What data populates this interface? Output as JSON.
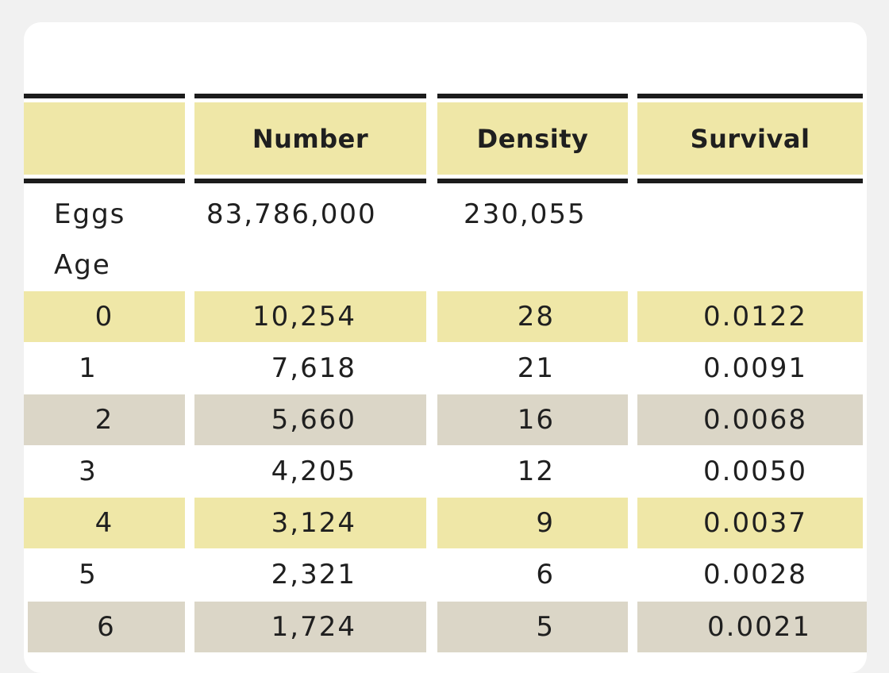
{
  "table": {
    "headers": [
      "",
      "Number",
      "Density",
      "Survival"
    ],
    "eggs_row": {
      "label": "Eggs",
      "number": "83,786,000",
      "density": "230,055",
      "survival": ""
    },
    "age_label": "Age",
    "rows": [
      {
        "age": "0",
        "number": "10,254",
        "density": "28",
        "survival": "0.0122",
        "shade": "yellow"
      },
      {
        "age": "1",
        "number": "7,618",
        "density": "21",
        "survival": "0.0091",
        "shade": "none"
      },
      {
        "age": "2",
        "number": "5,660",
        "density": "16",
        "survival": "0.0068",
        "shade": "gray"
      },
      {
        "age": "3",
        "number": "4,205",
        "density": "12",
        "survival": "0.0050",
        "shade": "none"
      },
      {
        "age": "4",
        "number": "3,124",
        "density": "9",
        "survival": "0.0037",
        "shade": "yellow"
      },
      {
        "age": "5",
        "number": "2,321",
        "density": "6",
        "survival": "0.0028",
        "shade": "none"
      },
      {
        "age": "6",
        "number": "1,724",
        "density": "5",
        "survival": "0.0021",
        "shade": "gray"
      }
    ],
    "colors": {
      "header_fill": "#efe7a7",
      "yellow_row": "#efe7a7",
      "gray_row": "#dbd6c7",
      "rule": "#1c1c1c",
      "text": "#1f1f1f"
    }
  }
}
